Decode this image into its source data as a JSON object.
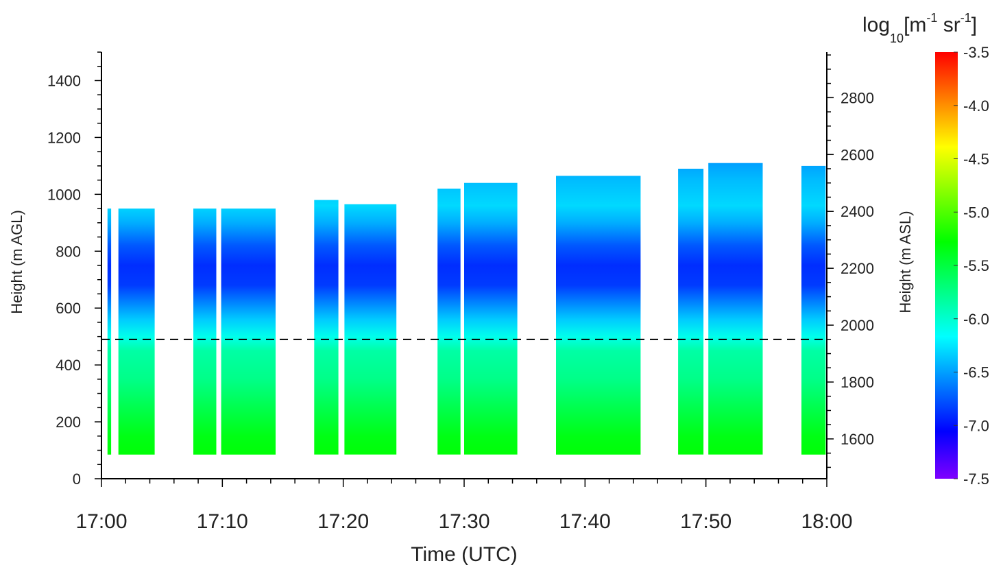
{
  "chart_data": {
    "type": "heatmap",
    "title": "",
    "xlabel": "Time (UTC)",
    "ylabel": "Height (m AGL)",
    "y2label": "Height (m ASL)",
    "xlim": [
      "17:00",
      "18:00"
    ],
    "ylim": [
      0,
      1500
    ],
    "y2lim": [
      1460,
      2960
    ],
    "xticks": [
      "17:00",
      "17:10",
      "17:20",
      "17:30",
      "17:40",
      "17:50",
      "18:00"
    ],
    "yticks": [
      0,
      200,
      400,
      600,
      800,
      1000,
      1200,
      1400
    ],
    "y2ticks": [
      1600,
      1800,
      2000,
      2200,
      2400,
      2600,
      2800
    ],
    "grid": false,
    "reference_line": {
      "y": 490,
      "style": "dashed"
    },
    "colorbar": {
      "label_base": "log",
      "label_sub": "10",
      "label_unit_open": "[m",
      "label_exp1": "-1",
      "label_mid": " sr",
      "label_exp2": "-1",
      "label_close": "]",
      "min": -7.5,
      "max": -3.5,
      "tick_values": [
        -3.5,
        -4.0,
        -4.5,
        -5.0,
        -5.5,
        -6.0,
        -6.5,
        -7.0,
        -7.5
      ],
      "tick_labels": [
        "-3.5",
        "-4.0",
        "-4.5",
        "-5.0",
        "-5.5",
        "-6.0",
        "-6.5",
        "-7.0",
        "-7.5"
      ],
      "colors": [
        "#7f00ff",
        "#0000ff",
        "#0080ff",
        "#00ffff",
        "#00ff80",
        "#00ff00",
        "#80ff00",
        "#ffff00",
        "#ff8000",
        "#ff0000"
      ]
    },
    "profile": {
      "heights": [
        80,
        150,
        250,
        350,
        450,
        500,
        560,
        620,
        680,
        750,
        820,
        900,
        960,
        1050,
        1110
      ],
      "values": [
        -5.3,
        -5.35,
        -5.55,
        -5.75,
        -5.85,
        -6.1,
        -6.35,
        -6.6,
        -6.85,
        -6.9,
        -6.75,
        -6.45,
        -6.3,
        -6.4,
        -6.5
      ]
    },
    "segments": [
      {
        "start": "17:00.5",
        "end": "17:00.8",
        "bottom": 85,
        "top": 950
      },
      {
        "start": "17:01.4",
        "end": "17:04.4",
        "bottom": 85,
        "top": 950
      },
      {
        "start": "17:07.6",
        "end": "17:09.5",
        "bottom": 85,
        "top": 950
      },
      {
        "start": "17:09.9",
        "end": "17:14.4",
        "bottom": 85,
        "top": 950
      },
      {
        "start": "17:17.6",
        "end": "17:19.6",
        "bottom": 85,
        "top": 980
      },
      {
        "start": "17:20.1",
        "end": "17:24.4",
        "bottom": 85,
        "top": 965
      },
      {
        "start": "17:27.8",
        "end": "17:29.7",
        "bottom": 85,
        "top": 1020
      },
      {
        "start": "17:30.0",
        "end": "17:34.4",
        "bottom": 85,
        "top": 1040
      },
      {
        "start": "17:37.6",
        "end": "17:44.6",
        "bottom": 85,
        "top": 1065
      },
      {
        "start": "17:47.7",
        "end": "17:49.8",
        "bottom": 85,
        "top": 1090
      },
      {
        "start": "17:50.2",
        "end": "17:54.7",
        "bottom": 85,
        "top": 1110
      },
      {
        "start": "17:57.9",
        "end": "17:59.9",
        "bottom": 85,
        "top": 1100
      }
    ]
  }
}
